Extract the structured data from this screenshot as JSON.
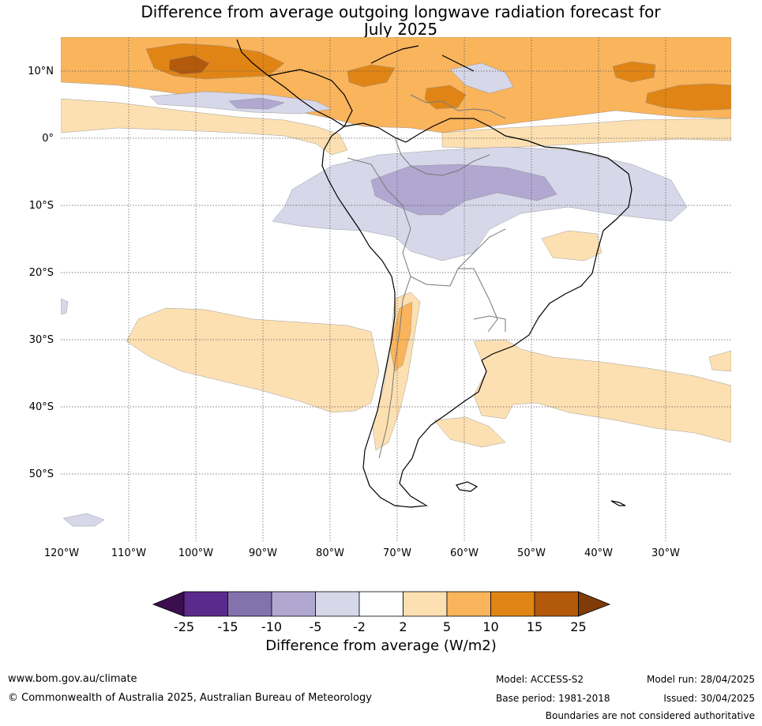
{
  "title": {
    "line1": "Difference from average outgoing longwave radiation forecast for",
    "line2": "July 2025"
  },
  "map": {
    "lat_labels": [
      "10°N",
      "0°",
      "10°S",
      "20°S",
      "30°S",
      "40°S",
      "50°S"
    ],
    "lon_labels": [
      "120°W",
      "110°W",
      "100°W",
      "90°W",
      "80°W",
      "70°W",
      "60°W",
      "50°W",
      "40°W",
      "30°W"
    ],
    "lon_range": [
      -120,
      -20
    ],
    "lat_range": [
      -60,
      15
    ],
    "colors": {
      "n25": "#3b0f4f",
      "n15": "#5c2a8c",
      "n10": "#8472ad",
      "n5": "#b1a8d1",
      "n2": "#d7d7ea",
      "p2": "#fde0b2",
      "p5": "#f9b45c",
      "p10": "#e08515",
      "p15": "#b3590b",
      "p25": "#7f3b08"
    }
  },
  "colorbar": {
    "ticks": [
      "-25",
      "-15",
      "-10",
      "-5",
      "-2",
      "2",
      "5",
      "10",
      "15",
      "25"
    ],
    "title": "Difference from average (W/m2)"
  },
  "footer": {
    "url": "www.bom.gov.au/climate",
    "copyright": "© Commonwealth of Australia 2025, Australian Bureau of Meteorology",
    "model": "Model: ACCESS-S2",
    "base_period": "Base period: 1981-2018",
    "model_run": "Model run: 28/04/2025",
    "issued": "Issued: 30/04/2025",
    "disclaimer": "Boundaries are not considered authoritative"
  }
}
